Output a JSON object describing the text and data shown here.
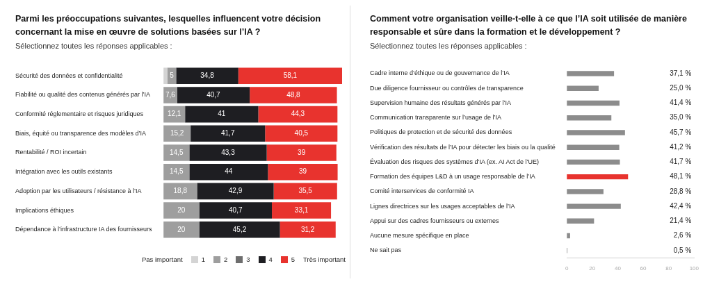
{
  "chart_data": [
    {
      "type": "bar",
      "orientation": "horizontal",
      "stacked": true,
      "title": "Parmi les préoccupations suivantes, lesquelles influencent votre décision concernant la mise en œuvre de solutions basées sur l’IA ?",
      "subtitle": "Sélectionnez toutes les réponses applicables :",
      "legend_title": "Pas important",
      "annotations": [
        "Très important"
      ],
      "legend": "bottom",
      "tick_labels": "y",
      "categories": [
        "Sécurité des données et confidentialité",
        "Fiabilité ou qualité des contenus générés par l’IA",
        "Conformité réglementaire et risques juridiques",
        "Biais, équité ou transparence des modèles d’IA",
        "Rentabilité / ROI incertain",
        "Intégration avec les outils existants",
        "Adoption par les utilisateurs / résistance à l’IA",
        "Implications éthiques",
        "Dépendance à l’infrastructure IA des fournisseurs"
      ],
      "series": [
        {
          "name": "1",
          "color": "#d4d4d4",
          "values": [
            2.1,
            null,
            null,
            null,
            null,
            null,
            null,
            null,
            null
          ],
          "value_labels": [
            null,
            null,
            null,
            null,
            null,
            null,
            null,
            null,
            null
          ]
        },
        {
          "name": "2",
          "color": "#9e9e9e",
          "values": [
            5,
            7.6,
            12.1,
            15.2,
            14.5,
            14.5,
            18.8,
            20,
            20
          ],
          "value_labels": [
            "5",
            "7,6",
            "12,1",
            "15,2",
            "14,5",
            "14,5",
            "18,8",
            "20",
            "20"
          ]
        },
        {
          "name": "3",
          "color": "#6e6e6e",
          "values": [
            null,
            null,
            null,
            null,
            null,
            null,
            null,
            null,
            null
          ],
          "value_labels": [
            null,
            null,
            null,
            null,
            null,
            null,
            null,
            null,
            null
          ]
        },
        {
          "name": "4",
          "color": "#1e1e22",
          "values": [
            34.8,
            40.7,
            41,
            41.7,
            43.3,
            44,
            42.9,
            40.7,
            45.2
          ],
          "value_labels": [
            "34,8",
            "40,7",
            "41",
            "41,7",
            "43,3",
            "44",
            "42,9",
            "40,7",
            "45,2"
          ]
        },
        {
          "name": "5",
          "color": "#e8332e",
          "values": [
            58.1,
            48.8,
            44.3,
            40.5,
            39,
            39,
            35.5,
            33.1,
            31.2
          ],
          "value_labels": [
            "58,1",
            "48,8",
            "44,3",
            "40,5",
            "39",
            "39",
            "35,5",
            "33,1",
            "31,2"
          ]
        }
      ]
    },
    {
      "type": "bar",
      "orientation": "horizontal",
      "title": "Comment votre organisation veille-t-elle à ce que l’IA soit utilisée de manière responsable et sûre dans la formation et le développement ?",
      "subtitle": "Sélectionnez toutes les réponses applicables :",
      "categories": [
        "Cadre interne d’éthique ou de gouvernance de l’IA",
        "Due diligence fournisseur ou contrôles de transparence",
        "Supervision humaine des résultats générés par l’IA",
        "Communication transparente sur l’usage de l’IA",
        "Politiques de protection et de sécurité des données",
        "Vérification des résultats de l’IA pour détecter les biais ou la qualité",
        "Évaluation des risques des systèmes d’IA (ex. AI Act de l’UE)",
        "Formation des équipes L&D à un usage responsable de l’IA",
        "Comité interservices de conformité IA",
        "Lignes directrices sur les usages acceptables de l’IA",
        "Appui sur des cadres fournisseurs ou externes",
        "Aucune mesure spécifique en place",
        "Ne sait pas"
      ],
      "values": [
        37.1,
        25.0,
        41.4,
        35.0,
        45.7,
        41.2,
        41.7,
        48.1,
        28.8,
        42.4,
        21.4,
        2.6,
        0.5
      ],
      "value_labels": [
        "37,1 %",
        "25,0 %",
        "41,4 %",
        "35,0 %",
        "45,7 %",
        "41,2 %",
        "41,7 %",
        "48,1 %",
        "28,8 %",
        "42,4 %",
        "21,4 %",
        "2,6 %",
        "0,5 %"
      ],
      "colors": [
        "#8c8c8c",
        "#8c8c8c",
        "#8c8c8c",
        "#8c8c8c",
        "#8c8c8c",
        "#8c8c8c",
        "#8c8c8c",
        "#e8332e",
        "#8c8c8c",
        "#8c8c8c",
        "#8c8c8c",
        "#8c8c8c",
        "#8c8c8c"
      ],
      "xlim": [
        0,
        100
      ],
      "xticks": [
        0,
        20,
        40,
        60,
        80,
        100
      ]
    }
  ]
}
